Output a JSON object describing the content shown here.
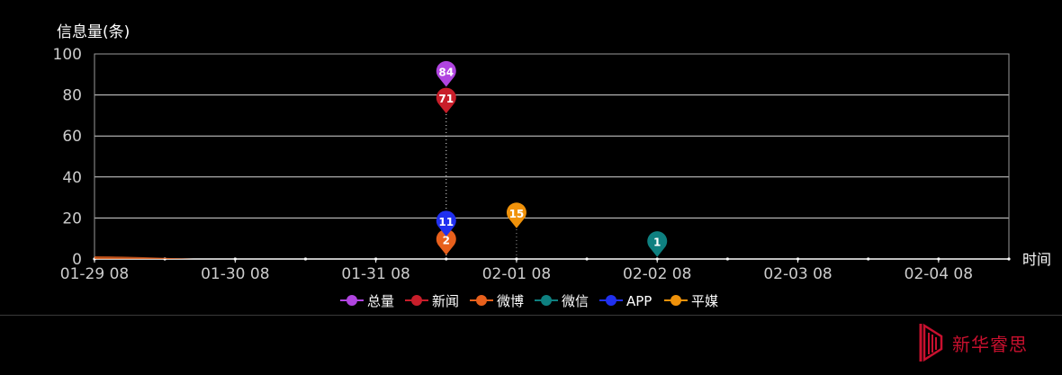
{
  "chart_data": {
    "type": "line",
    "ylabel": "信息量(条)",
    "xlabel": "时间",
    "ylim": [
      0,
      100
    ],
    "yticks": [
      0,
      20,
      40,
      60,
      80,
      100
    ],
    "x_tick_labels": [
      "01-29 08",
      "01-30 08",
      "01-31 08",
      "02-01 08",
      "02-02 08",
      "02-03 08",
      "02-04 08"
    ],
    "grid": true,
    "legend_position": "bottom",
    "series": [
      {
        "name": "总量",
        "color": "#b044e0",
        "peak": {
          "x": "01-31 20",
          "value": 84
        }
      },
      {
        "name": "新闻",
        "color": "#c81e2a",
        "peak": {
          "x": "01-31 20",
          "value": 71
        }
      },
      {
        "name": "微博",
        "color": "#e8601c",
        "peak": {
          "x": "01-31 20",
          "value": 2
        }
      },
      {
        "name": "微信",
        "color": "#0e8080",
        "peak": {
          "x": "02-02 08",
          "value": 1
        }
      },
      {
        "name": "APP",
        "color": "#2030f0",
        "peak": {
          "x": "01-31 20",
          "value": 11
        }
      },
      {
        "name": "平媒",
        "color": "#f0920a",
        "peak": {
          "x": "02-01 08",
          "value": 15
        }
      }
    ],
    "marker_labels": [
      "84",
      "71",
      "2",
      "1",
      "11",
      "15"
    ]
  },
  "branding": {
    "label": "新华睿思",
    "icon": "xinhua-ruisi-logo-icon"
  }
}
